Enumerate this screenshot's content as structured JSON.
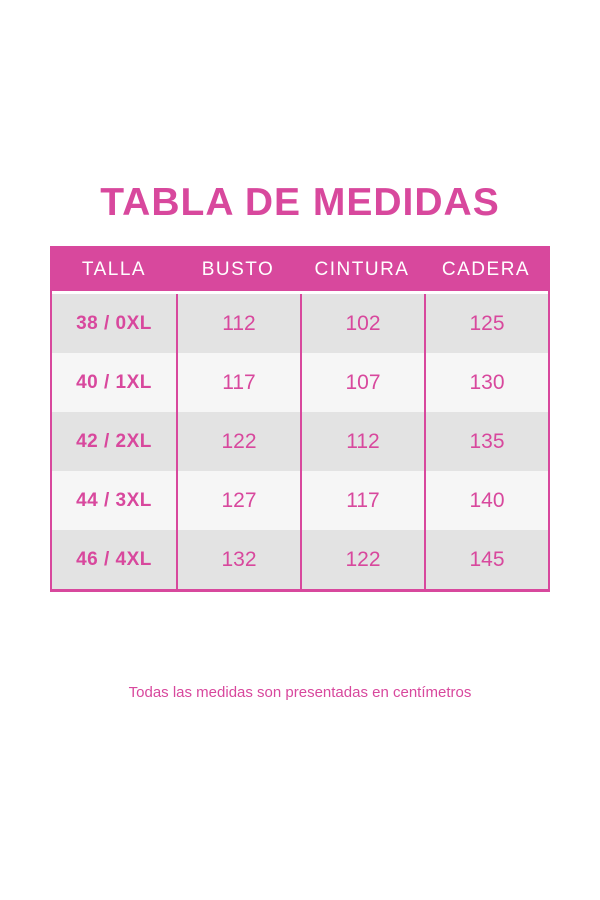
{
  "page": {
    "title": "TABLA DE MEDIDAS",
    "footnote": "Todas las medidas son presentadas en centímetros"
  },
  "table": {
    "columns": [
      "TALLA",
      "BUSTO",
      "CINTURA",
      "CADERA"
    ],
    "rows": [
      {
        "talla": "38 / 0XL",
        "busto": "112",
        "cintura": "102",
        "cadera": "125"
      },
      {
        "talla": "40 / 1XL",
        "busto": "117",
        "cintura": "107",
        "cadera": "130"
      },
      {
        "talla": "42 / 2XL",
        "busto": "122",
        "cintura": "112",
        "cadera": "135"
      },
      {
        "talla": "44 / 3XL",
        "busto": "127",
        "cintura": "117",
        "cadera": "140"
      },
      {
        "talla": "46 / 4XL",
        "busto": "132",
        "cintura": "122",
        "cadera": "145"
      }
    ]
  },
  "colors": {
    "accent_pink": "#d8489d",
    "row_alt_gray": "#e3e3e3",
    "row_alt_light": "#f6f6f6",
    "header_text": "#ffffff",
    "background": "#ffffff"
  },
  "chart_data": {
    "type": "table",
    "title": "TABLA DE MEDIDAS",
    "columns": [
      "TALLA",
      "BUSTO",
      "CINTURA",
      "CADERA"
    ],
    "rows": [
      [
        "38 / 0XL",
        112,
        102,
        125
      ],
      [
        "40 / 1XL",
        117,
        107,
        130
      ],
      [
        "42 / 2XL",
        122,
        112,
        135
      ],
      [
        "44 / 3XL",
        127,
        117,
        140
      ],
      [
        "46 / 4XL",
        132,
        122,
        145
      ]
    ],
    "units": "centímetros",
    "note": "Todas las medidas son presentadas en centímetros"
  }
}
